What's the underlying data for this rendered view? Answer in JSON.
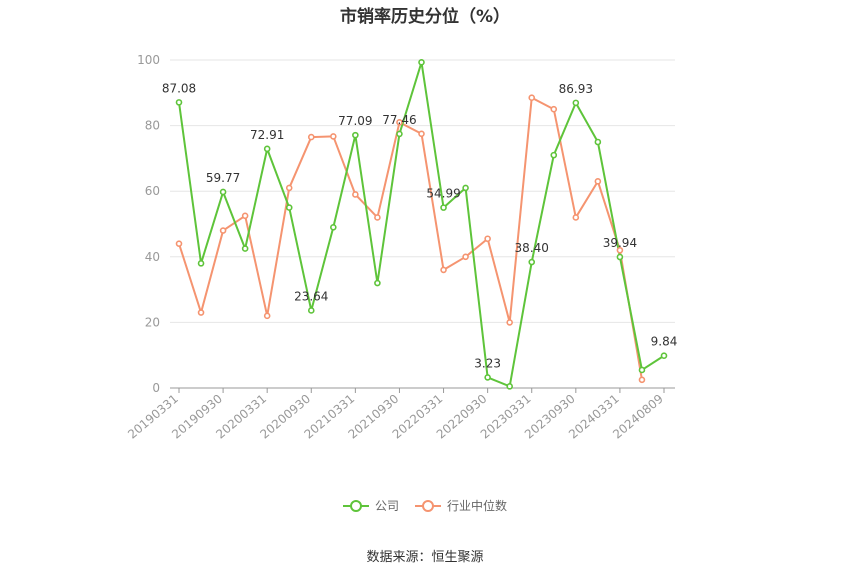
{
  "chart_data": {
    "type": "line",
    "title": "市销率历史分位（%）",
    "ylim": [
      0,
      100
    ],
    "yticks": [
      0,
      20,
      40,
      60,
      80,
      100
    ],
    "x_labels": [
      "20190331",
      "20190930",
      "20200331",
      "20200930",
      "20210331",
      "20210930",
      "20220331",
      "20220930",
      "20230331",
      "20230930",
      "20240331",
      "20240809"
    ],
    "series": [
      {
        "name": "公司",
        "color": "#5ec43a",
        "values": [
          87.08,
          38.0,
          59.77,
          42.5,
          72.91,
          55.0,
          23.64,
          49.0,
          77.09,
          32.0,
          77.46,
          99.3,
          54.99,
          61.0,
          3.23,
          0.5,
          38.4,
          71.0,
          86.93,
          75.0,
          39.94,
          5.5,
          9.84
        ],
        "labels": [
          "87.08",
          "",
          "59.77",
          "",
          "72.91",
          "",
          "23.64",
          "",
          "77.09",
          "",
          "77.46",
          "",
          "54.99",
          "",
          "3.23",
          "",
          "38.40",
          "",
          "86.93",
          "",
          "39.94",
          "",
          "9.84"
        ]
      },
      {
        "name": "行业中位数",
        "color": "#f59470",
        "values": [
          44.0,
          23.0,
          48.0,
          52.5,
          22.0,
          61.0,
          76.5,
          76.7,
          59.0,
          52.0,
          81.0,
          77.5,
          36.0,
          40.0,
          45.5,
          20.0,
          88.5,
          85.0,
          52.0,
          63.0,
          42.0,
          2.5
        ]
      }
    ],
    "grid": true,
    "legend_position": "bottom"
  },
  "source": "数据来源：恒生聚源"
}
